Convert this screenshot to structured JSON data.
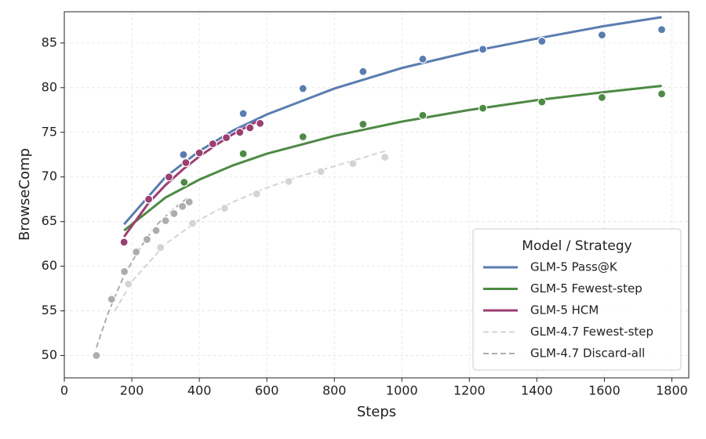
{
  "chart_data": {
    "type": "scatter",
    "x_label": "Steps",
    "y_label": "BrowseComp",
    "xlim": [
      0,
      1850
    ],
    "ylim": [
      47.5,
      88.5
    ],
    "xticks": [
      0,
      200,
      400,
      600,
      800,
      1000,
      1200,
      1400,
      1600,
      1800
    ],
    "yticks": [
      50,
      55,
      60,
      65,
      70,
      75,
      80,
      85
    ],
    "grid": true,
    "legend": "lower right",
    "legend_title": "Model / Strategy",
    "series": [
      {
        "name": "GLM-5 Pass@K",
        "color": "#5a7db0",
        "dashed": false,
        "x": [
          353,
          530,
          707,
          885,
          1062,
          1240,
          1415,
          1593,
          1770
        ],
        "values": [
          72.5,
          77.1,
          79.9,
          81.8,
          83.2,
          84.3,
          85.2,
          85.9,
          86.5
        ],
        "fit_x": [
          177,
          300,
          400,
          500,
          600,
          800,
          1000,
          1200,
          1400,
          1600,
          1770
        ],
        "fit_values": [
          64.7,
          70.0,
          72.9,
          75.2,
          77.0,
          79.9,
          82.2,
          84.0,
          85.5,
          86.9,
          87.9
        ]
      },
      {
        "name": "GLM-5 Fewest-step",
        "color": "#4e8a45",
        "dashed": false,
        "x": [
          355,
          530,
          707,
          885,
          1062,
          1240,
          1415,
          1593,
          1770
        ],
        "values": [
          69.4,
          72.6,
          74.5,
          75.9,
          76.9,
          77.7,
          78.4,
          78.9,
          79.3
        ],
        "fit_x": [
          177,
          300,
          400,
          500,
          600,
          800,
          1000,
          1200,
          1400,
          1600,
          1770
        ],
        "fit_values": [
          64.0,
          67.7,
          69.7,
          71.3,
          72.6,
          74.6,
          76.2,
          77.5,
          78.6,
          79.5,
          80.2
        ]
      },
      {
        "name": "GLM-5 HCM",
        "color": "#9b3f72",
        "dashed": false,
        "x": [
          177,
          250,
          310,
          360,
          400,
          440,
          480,
          520,
          550,
          580
        ],
        "values": [
          62.7,
          67.5,
          70.0,
          71.6,
          72.7,
          73.7,
          74.4,
          75.0,
          75.5,
          76.0
        ],
        "fit_x": [
          177,
          250,
          300,
          350,
          400,
          450,
          500,
          550,
          580
        ],
        "fit_values": [
          63.3,
          67.1,
          69.1,
          70.8,
          72.3,
          73.6,
          74.8,
          75.8,
          76.4
        ]
      },
      {
        "name": "GLM-4.7 Fewest-step",
        "color": "#d4d4d4",
        "dashed": true,
        "x": [
          190,
          285,
          380,
          475,
          570,
          665,
          760,
          855,
          950
        ],
        "values": [
          58.0,
          62.1,
          64.8,
          66.5,
          68.1,
          69.5,
          70.6,
          71.5,
          72.2
        ],
        "fit_x": [
          150,
          200,
          300,
          400,
          500,
          600,
          700,
          800,
          950
        ],
        "fit_values": [
          55.0,
          58.3,
          62.5,
          65.2,
          67.2,
          68.8,
          70.1,
          71.2,
          72.9
        ]
      },
      {
        "name": "GLM-4.7 Discard-all",
        "color": "#adadad",
        "dashed": true,
        "x": [
          95,
          140,
          178,
          213,
          245,
          272,
          300,
          325,
          350,
          370
        ],
        "values": [
          50.0,
          56.3,
          59.4,
          61.6,
          63.0,
          64.0,
          65.1,
          65.9,
          66.7,
          67.2
        ],
        "fit_x": [
          95,
          130,
          175,
          220,
          270,
          320,
          370
        ],
        "fit_values": [
          50.9,
          54.8,
          58.8,
          61.8,
          64.5,
          66.3,
          67.8
        ]
      }
    ]
  }
}
